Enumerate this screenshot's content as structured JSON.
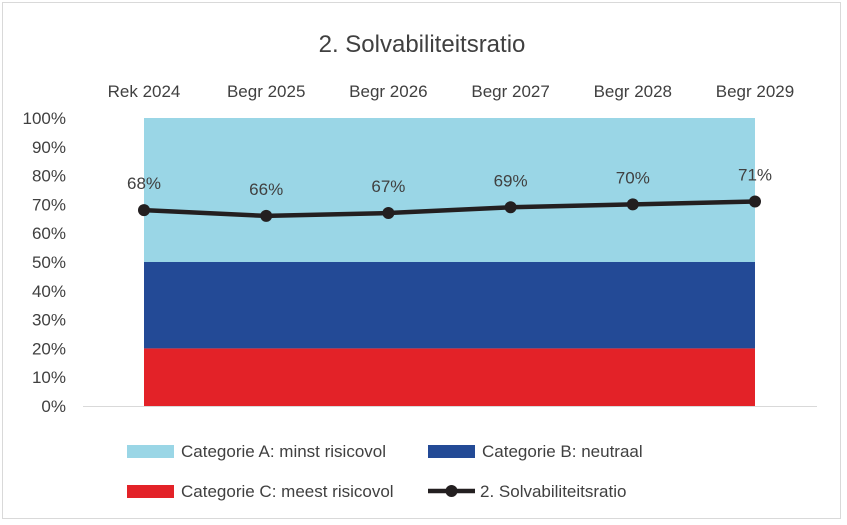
{
  "chart_data": {
    "type": "line",
    "title": "2. Solvabiliteitsratio",
    "categories": [
      "Rek 2024",
      "Begr 2025",
      "Begr 2026",
      "Begr 2027",
      "Begr 2028",
      "Begr 2029"
    ],
    "y_ticks": [
      "0%",
      "10%",
      "20%",
      "30%",
      "40%",
      "50%",
      "60%",
      "70%",
      "80%",
      "90%",
      "100%"
    ],
    "ylim": [
      0,
      100
    ],
    "x_axis_position": "top",
    "bands": [
      {
        "name": "Categorie C: meest risicovol",
        "from": 0,
        "to": 20,
        "color": "#e32228"
      },
      {
        "name": "Categorie B: neutraal",
        "from": 20,
        "to": 50,
        "color": "#234a96"
      },
      {
        "name": "Categorie A: minst risicovol",
        "from": 50,
        "to": 100,
        "color": "#9ad6e6"
      }
    ],
    "series": [
      {
        "name": "2. Solvabiliteitsratio",
        "values": [
          68,
          66,
          67,
          69,
          70,
          71
        ],
        "labels": [
          "68%",
          "66%",
          "67%",
          "69%",
          "70%",
          "71%"
        ],
        "color": "#231f20"
      }
    ],
    "legend": {
      "placement": "bottom",
      "items": [
        {
          "label": "Categorie A: minst risicovol",
          "color": "#9ad6e6",
          "kind": "area"
        },
        {
          "label": "Categorie B: neutraal",
          "color": "#234a96",
          "kind": "area"
        },
        {
          "label": "Categorie C: meest risicovol",
          "color": "#e32228",
          "kind": "area"
        },
        {
          "label": "2. Solvabiliteitsratio",
          "color": "#231f20",
          "kind": "line"
        }
      ]
    },
    "grid": false
  }
}
